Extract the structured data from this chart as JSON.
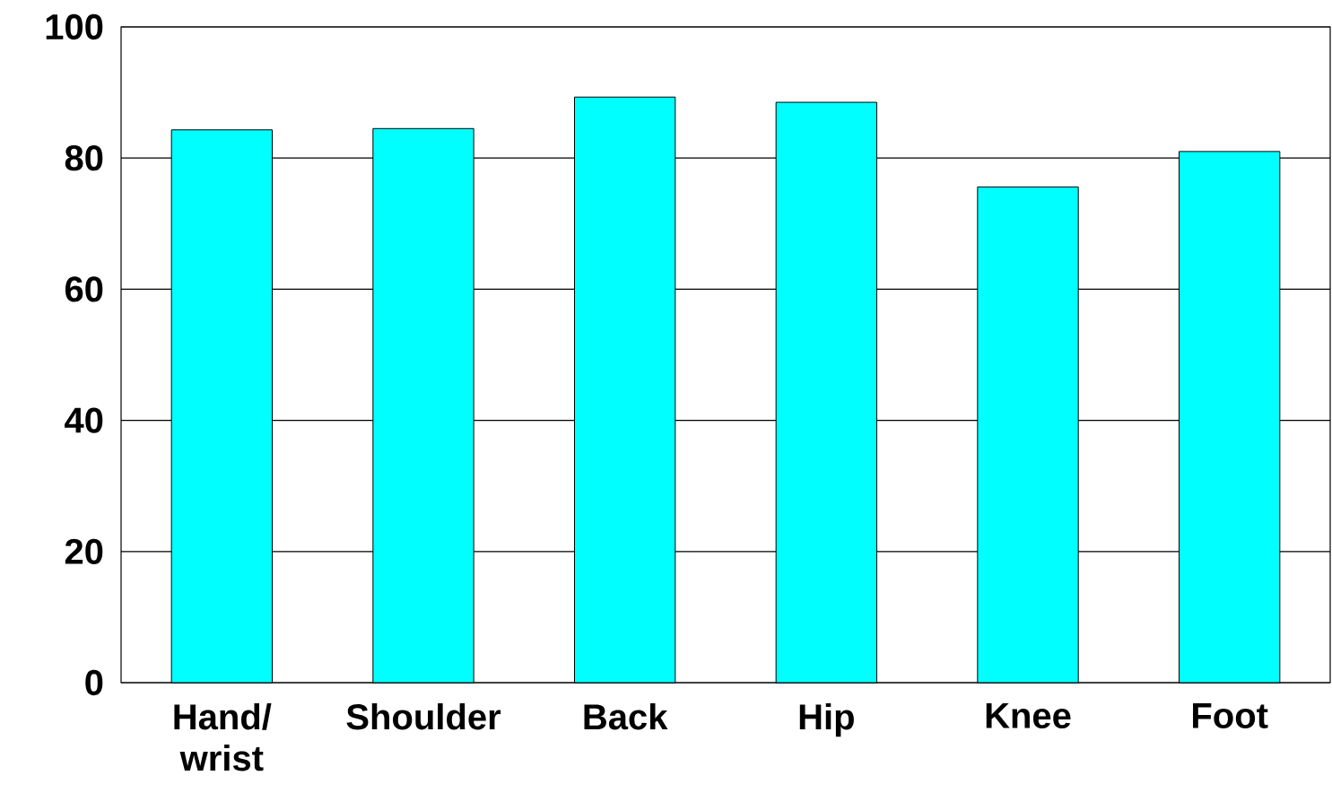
{
  "chart_data": {
    "type": "bar",
    "categories": [
      "Hand/ wrist",
      "Shoulder",
      "Back",
      "Hip",
      "Knee",
      "Foot"
    ],
    "values": [
      84.3,
      84.5,
      89.3,
      88.5,
      75.6,
      81.0
    ],
    "color": "#00ffff",
    "ylim": [
      0,
      100
    ],
    "yticks": [
      0,
      20,
      40,
      60,
      80,
      100
    ],
    "grid": "y"
  }
}
